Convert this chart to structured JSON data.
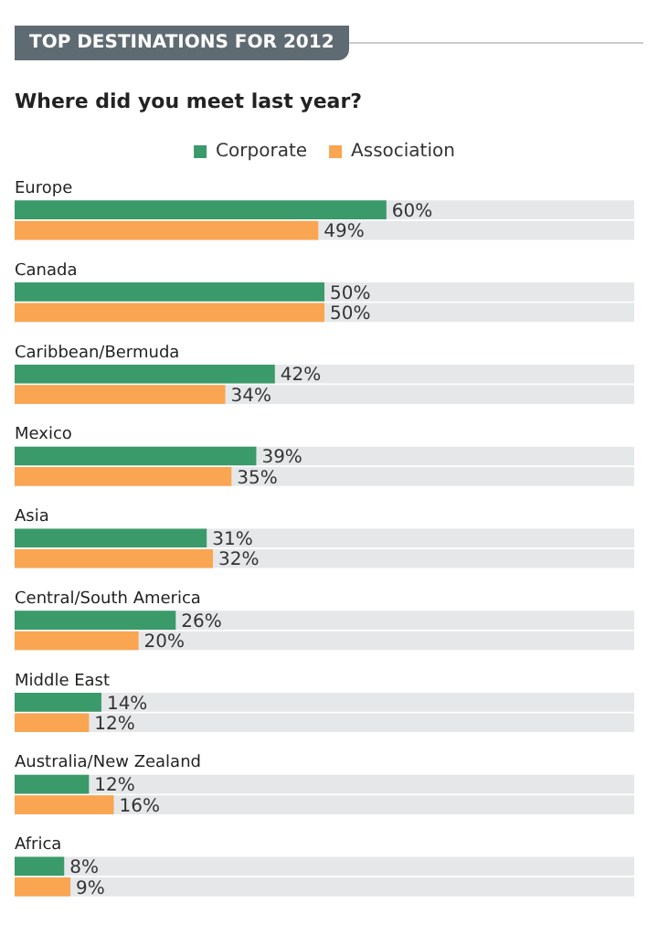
{
  "chart_data": {
    "type": "bar",
    "orientation": "horizontal",
    "title": "TOP DESTINATIONS FOR 2012",
    "subtitle": "Where did you meet last year?",
    "categories": [
      "Europe",
      "Canada",
      "Caribbean/Bermuda",
      "Mexico",
      "Asia",
      "Central/South America",
      "Middle East",
      "Australia/New Zealand",
      "Africa"
    ],
    "series": [
      {
        "name": "Corporate",
        "color": "#3a9a6a",
        "values": [
          60,
          50,
          42,
          39,
          31,
          26,
          14,
          12,
          8
        ],
        "value_labels": [
          "60%",
          "50%",
          "42%",
          "39%",
          "31%",
          "26%",
          "14%",
          "12%",
          "8%"
        ]
      },
      {
        "name": "Association",
        "color": "#f9a552",
        "values": [
          49,
          50,
          34,
          35,
          32,
          20,
          12,
          16,
          9
        ],
        "value_labels": [
          "49%",
          "50%",
          "34%",
          "35%",
          "32%",
          "20%",
          "12%",
          "16%",
          "9%"
        ]
      }
    ],
    "xlim": [
      0,
      100
    ],
    "tick_labels": "y",
    "legend": "top"
  }
}
